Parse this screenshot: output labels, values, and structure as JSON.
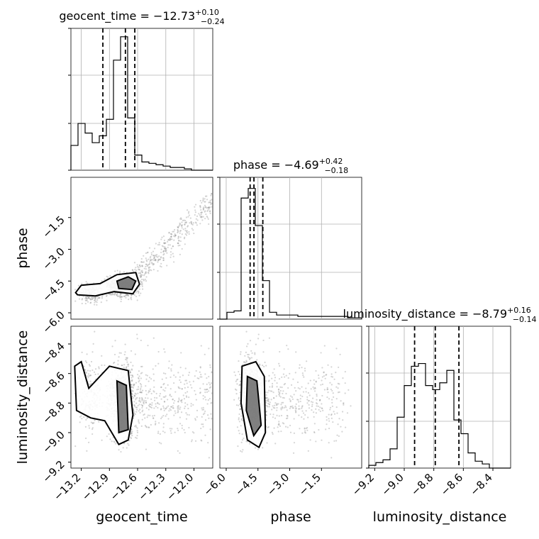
{
  "chart_data": {
    "type": "corner",
    "parameters": [
      "geocent_time",
      "phase",
      "luminosity_distance"
    ],
    "titles": [
      {
        "param": "geocent_time",
        "prefix": "geocent_time = ",
        "median": "−12.73",
        "plus": "+0.10",
        "minus": "−0.24"
      },
      {
        "param": "phase",
        "prefix": "phase = ",
        "median": "−4.69",
        "plus": "+0.42",
        "minus": "−0.18"
      },
      {
        "param": "luminosity_distance",
        "prefix": "luminosity_distance = ",
        "median": "−8.79",
        "plus": "+0.16",
        "minus": "−0.14"
      }
    ],
    "ranges": {
      "geocent_time": [
        -13.31,
        -11.8
      ],
      "phase": [
        -6.3,
        0.4
      ],
      "luminosity_distance": [
        -9.24,
        -8.28
      ]
    },
    "ticks": {
      "geocent_time": {
        "values": [
          -13.2,
          -12.9,
          -12.6,
          -12.3,
          -12.0
        ],
        "labels": [
          "−13.2",
          "−12.9",
          "−12.6",
          "−12.3",
          "−12.0"
        ]
      },
      "phase": {
        "values": [
          -6.0,
          -4.5,
          -3.0,
          -1.5
        ],
        "labels": [
          "−6.0",
          "−4.5",
          "−3.0",
          "−1.5"
        ]
      },
      "luminosity_distance": {
        "values": [
          -9.2,
          -9.0,
          -8.8,
          -8.6,
          -8.4
        ],
        "labels": [
          "−9.2",
          "−9.0",
          "−8.8",
          "−8.6",
          "−8.4"
        ]
      }
    },
    "histograms": {
      "geocent_time": {
        "bin_start": -13.31,
        "bin_end": -11.8,
        "heights": [
          0.18,
          0.34,
          0.27,
          0.2,
          0.25,
          0.37,
          0.8,
          0.97,
          0.38,
          0.11,
          0.06,
          0.05,
          0.04,
          0.03,
          0.02,
          0.02,
          0.01,
          0.0,
          0.0,
          0.0
        ],
        "quantiles": [
          -12.97,
          -12.73,
          -12.63
        ]
      },
      "phase": {
        "bin_start": -6.3,
        "bin_end": 0.4,
        "heights": [
          0.0,
          0.05,
          0.06,
          0.88,
          0.95,
          0.68,
          0.28,
          0.05,
          0.03,
          0.03,
          0.03,
          0.02,
          0.02,
          0.02,
          0.02,
          0.02,
          0.02,
          0.02,
          0.01,
          0.01
        ],
        "quantiles": [
          -4.87,
          -4.69,
          -4.27
        ]
      },
      "luminosity_distance": {
        "bin_start": -9.24,
        "bin_end": -8.28,
        "heights": [
          0.02,
          0.04,
          0.06,
          0.14,
          0.37,
          0.6,
          0.74,
          0.76,
          0.6,
          0.57,
          0.62,
          0.71,
          0.35,
          0.25,
          0.11,
          0.05,
          0.03,
          0.0,
          0.0,
          0.0
        ],
        "quantiles": [
          -8.93,
          -8.79,
          -8.63
        ]
      }
    },
    "grid": true,
    "scatter_color": "#888888",
    "contour_color": "#000000"
  }
}
